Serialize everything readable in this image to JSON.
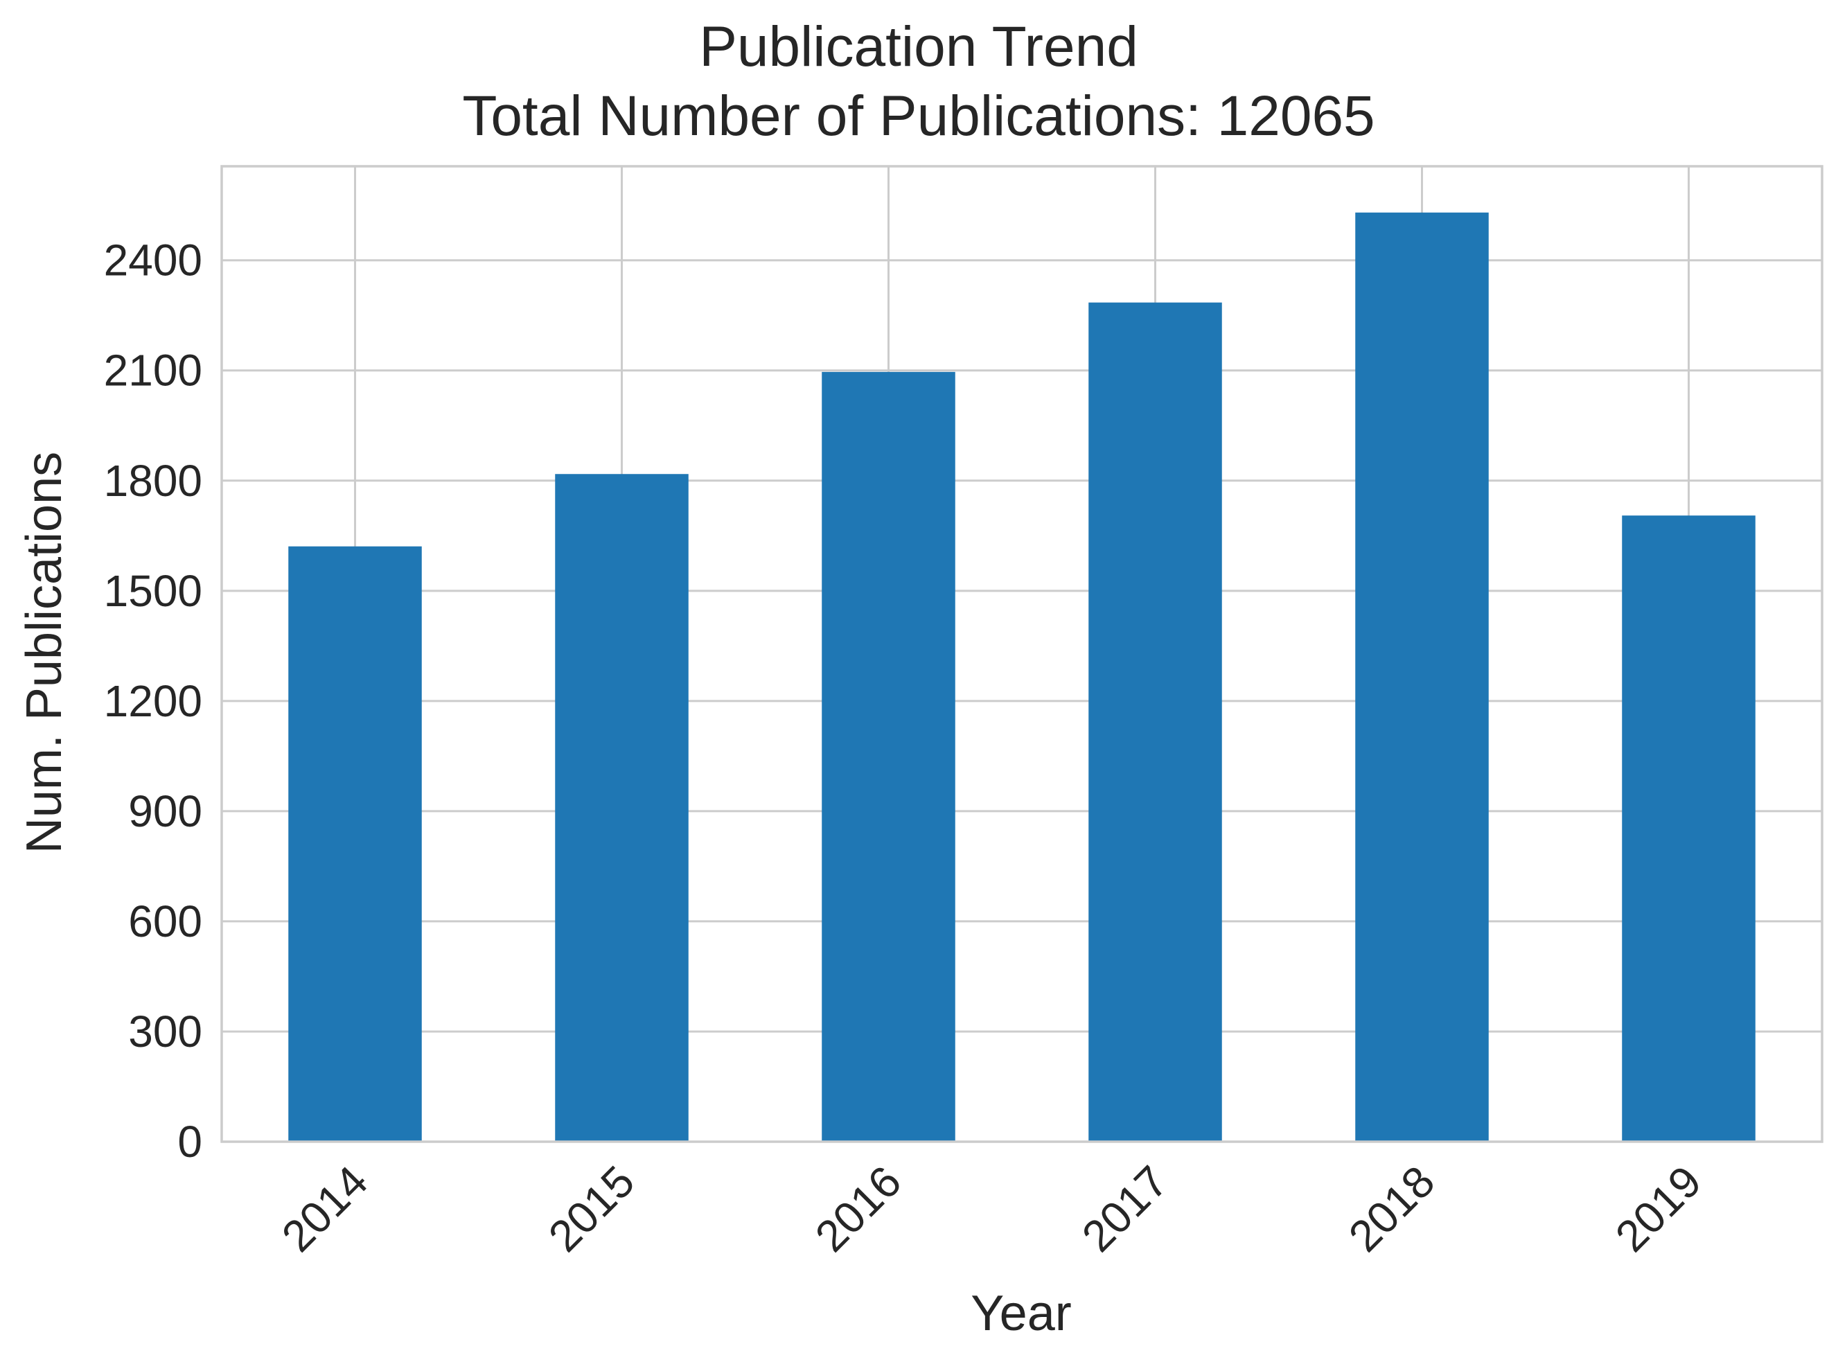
{
  "chart_data": {
    "type": "bar",
    "title": [
      "Publication Trend",
      "Total Number of Publications: 12065"
    ],
    "xlabel": "Year",
    "ylabel": "Num. Publications",
    "categories": [
      "2014",
      "2015",
      "2016",
      "2017",
      "2018",
      "2019"
    ],
    "values": [
      1621,
      1818,
      2096,
      2285,
      2530,
      1705
    ],
    "yticks": [
      0,
      300,
      600,
      900,
      1200,
      1500,
      1800,
      2100,
      2400
    ],
    "ytick_labels": [
      "0",
      "300",
      "600",
      "900",
      "1200",
      "1500",
      "1800",
      "2100",
      "2400"
    ],
    "ylim": [
      0,
      2656
    ],
    "grid": true,
    "xtick_rotation_deg": 45,
    "bar_color": "#1f77b4",
    "grid_color": "#cccccc",
    "text_color": "#262626"
  }
}
